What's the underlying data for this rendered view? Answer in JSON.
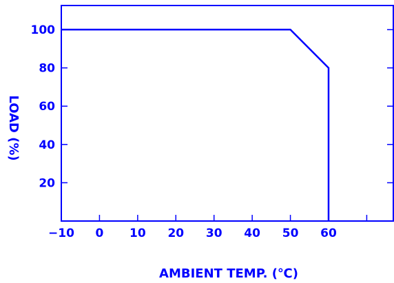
{
  "chart_data": {
    "type": "line",
    "xlabel": "AMBIENT  TEMP. (℃)",
    "ylabel": "LOAD (%)",
    "xlim": [
      -10,
      75
    ],
    "ylim": [
      0,
      112
    ],
    "x_ticks": [
      -10,
      0,
      10,
      20,
      30,
      40,
      50,
      60,
      70
    ],
    "x_tick_labels": [
      "−10",
      "0",
      "10",
      "20",
      "30",
      "40",
      "50",
      "60",
      ""
    ],
    "y_ticks": [
      20,
      40,
      60,
      80,
      100
    ],
    "y_tick_labels": [
      "20",
      "40",
      "60",
      "80",
      "100"
    ],
    "grid": false,
    "series": [
      {
        "x": [
          -10,
          50,
          60,
          60
        ],
        "y": [
          100,
          100,
          80,
          0
        ]
      }
    ],
    "color": "#0000ff"
  }
}
